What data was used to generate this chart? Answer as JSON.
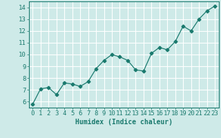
{
  "x": [
    0,
    1,
    2,
    3,
    4,
    5,
    6,
    7,
    8,
    9,
    10,
    11,
    12,
    13,
    14,
    15,
    16,
    17,
    18,
    19,
    20,
    21,
    22,
    23
  ],
  "y": [
    5.8,
    7.1,
    7.2,
    6.6,
    7.6,
    7.5,
    7.3,
    7.7,
    8.8,
    9.5,
    10.0,
    9.8,
    9.5,
    8.7,
    8.6,
    10.1,
    10.6,
    10.4,
    11.1,
    12.4,
    12.0,
    13.0,
    13.7,
    14.1
  ],
  "line_color": "#1a7a6e",
  "marker": "D",
  "marker_size": 2.5,
  "bg_color": "#ceeae8",
  "grid_color": "#ffffff",
  "xlabel": "Humidex (Indice chaleur)",
  "xlim": [
    -0.5,
    23.5
  ],
  "ylim": [
    5.5,
    14.5
  ],
  "yticks": [
    6,
    7,
    8,
    9,
    10,
    11,
    12,
    13,
    14
  ],
  "xticks": [
    0,
    1,
    2,
    3,
    4,
    5,
    6,
    7,
    8,
    9,
    10,
    11,
    12,
    13,
    14,
    15,
    16,
    17,
    18,
    19,
    20,
    21,
    22,
    23
  ],
  "tick_color": "#1a7a6e",
  "label_color": "#1a7a6e",
  "font_size_label": 7,
  "font_size_tick": 6.5
}
